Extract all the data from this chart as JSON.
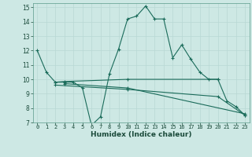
{
  "title": "",
  "xlabel": "Humidex (Indice chaleur)",
  "xlim": [
    -0.5,
    23.5
  ],
  "ylim": [
    7,
    15.3
  ],
  "xticks": [
    0,
    1,
    2,
    3,
    4,
    5,
    6,
    7,
    8,
    9,
    10,
    11,
    12,
    13,
    14,
    15,
    16,
    17,
    18,
    19,
    20,
    21,
    22,
    23
  ],
  "yticks": [
    7,
    8,
    9,
    10,
    11,
    12,
    13,
    14,
    15
  ],
  "bg_color": "#cde8e4",
  "grid_color": "#b8d8d4",
  "plot_bg": "#cde8e4",
  "line_color": "#1a6b5a",
  "lines": [
    {
      "x": [
        0,
        1,
        2,
        3,
        4,
        5,
        6,
        7,
        8,
        9,
        10,
        11,
        12,
        13,
        14,
        15,
        16,
        17,
        18,
        19,
        20,
        21,
        22,
        23
      ],
      "y": [
        12.0,
        10.5,
        9.8,
        9.8,
        9.8,
        9.4,
        6.8,
        7.4,
        10.4,
        12.1,
        14.2,
        14.4,
        15.1,
        14.2,
        14.2,
        11.5,
        12.4,
        11.4,
        10.5,
        10.0,
        10.0,
        8.5,
        8.1,
        7.5
      ]
    },
    {
      "x": [
        2,
        3,
        10,
        20
      ],
      "y": [
        9.8,
        9.85,
        10.0,
        10.0
      ]
    },
    {
      "x": [
        3,
        10,
        23
      ],
      "y": [
        9.7,
        9.4,
        7.6
      ]
    },
    {
      "x": [
        2,
        10,
        20,
        23
      ],
      "y": [
        9.6,
        9.3,
        8.8,
        7.5
      ]
    }
  ]
}
